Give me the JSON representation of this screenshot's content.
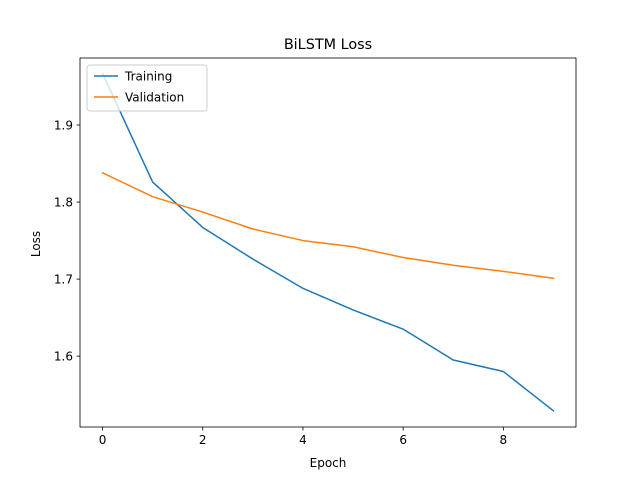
{
  "chart_data": {
    "type": "line",
    "title": "BiLSTM Loss",
    "xlabel": "Epoch",
    "ylabel": "Loss",
    "x": [
      0,
      1,
      2,
      3,
      4,
      5,
      6,
      7,
      8,
      9
    ],
    "xlim": [
      -0.45,
      9.45
    ],
    "ylim": [
      1.508,
      1.987
    ],
    "xticks": [
      0,
      2,
      4,
      6,
      8
    ],
    "xtick_labels": [
      "0",
      "2",
      "4",
      "6",
      "8"
    ],
    "yticks": [
      1.6,
      1.7,
      1.8,
      1.9
    ],
    "ytick_labels": [
      "1.6",
      "1.7",
      "1.8",
      "1.9"
    ],
    "grid": false,
    "legend_position": "upper left",
    "series": [
      {
        "name": "Training",
        "color": "#1f77b4",
        "values": [
          1.967,
          1.826,
          1.767,
          1.726,
          1.688,
          1.66,
          1.635,
          1.595,
          1.58,
          1.529
        ]
      },
      {
        "name": "Validation",
        "color": "#ff7f0e",
        "values": [
          1.838,
          1.807,
          1.787,
          1.765,
          1.75,
          1.742,
          1.728,
          1.718,
          1.71,
          1.701
        ]
      }
    ]
  }
}
